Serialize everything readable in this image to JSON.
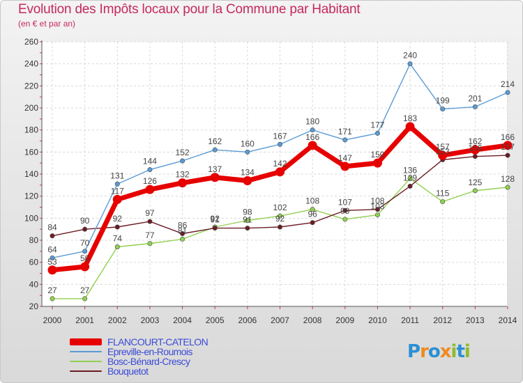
{
  "header": {
    "title": "Evolution des Impôts locaux pour la Commune par Habitant",
    "subtitle": "(en € et par an)"
  },
  "logo": {
    "parts": [
      "P",
      "r",
      "o",
      "x",
      "i",
      "t",
      "i"
    ],
    "colors": [
      "#2a8fd6",
      "#f08a1c",
      "#2a8fd6",
      "#f08a1c",
      "#8cbd2a",
      "#2a8fd6",
      "#8cbd2a"
    ]
  },
  "chart_data": {
    "type": "line",
    "title": "Evolution des Impôts locaux pour la Commune par Habitant",
    "subtitle": "(en € et par an)",
    "xlabel": "",
    "ylabel": "",
    "ylim": [
      20,
      260
    ],
    "yticks": [
      20,
      40,
      60,
      80,
      100,
      120,
      140,
      160,
      180,
      200,
      220,
      240,
      260
    ],
    "grid": true,
    "legend_position": "bottom-left",
    "categories": [
      "2000",
      "2001",
      "2002",
      "2003",
      "2004",
      "2005",
      "2006",
      "2007",
      "2008",
      "2009",
      "2010",
      "2011",
      "2012",
      "2013",
      "2014"
    ],
    "series": [
      {
        "name": "FLANCOURT-CATELON",
        "color": "#e60000",
        "values": [
          53,
          56,
          117,
          126,
          132,
          137,
          134,
          142,
          166,
          147,
          150,
          183,
          157,
          162,
          166
        ]
      },
      {
        "name": "Epreville-en-Roumois",
        "color": "#5b9bd5",
        "values": [
          64,
          70,
          131,
          144,
          152,
          162,
          160,
          167,
          180,
          171,
          177,
          240,
          199,
          201,
          214
        ]
      },
      {
        "name": "Bosc-Bénard-Crescy",
        "color": "#92d050",
        "values": [
          27,
          27,
          74,
          77,
          81,
          92,
          98,
          102,
          108,
          99,
          103,
          136,
          115,
          125,
          128
        ]
      },
      {
        "name": "Bouquetot",
        "color": "#6b1c24",
        "values": [
          84,
          90,
          92,
          97,
          86,
          91,
          91,
          92,
          96,
          107,
          108,
          129,
          153,
          156,
          157
        ]
      }
    ],
    "data_labels": [
      [
        "53",
        "56",
        "117",
        "126",
        "132",
        "137",
        "134",
        "142",
        "166",
        "147",
        "150",
        "183",
        "157",
        "162",
        "166"
      ],
      [
        "64",
        "70",
        "131",
        "144",
        "152",
        "162",
        "160",
        "167",
        "180",
        "171",
        "177",
        "240",
        "199",
        "201",
        "214"
      ],
      [
        "27",
        "27",
        "74",
        "77",
        "81",
        "92",
        "98",
        "102",
        "108",
        "99",
        "103",
        "136",
        "115",
        "125",
        "128"
      ],
      [
        "84",
        "90",
        "92",
        "97",
        "86",
        "91",
        "91",
        "92",
        "96",
        "107",
        "108",
        "129",
        "153",
        "156",
        "157"
      ]
    ]
  }
}
